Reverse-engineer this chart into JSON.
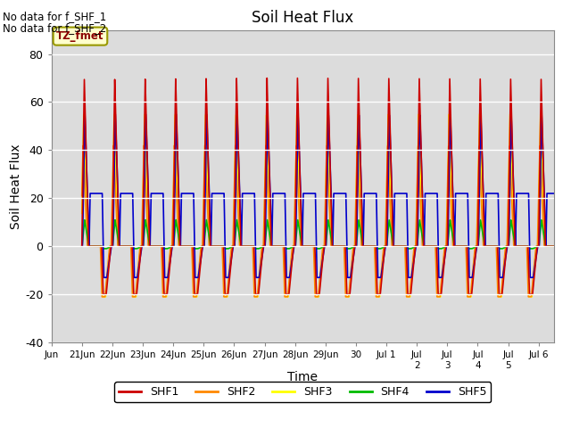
{
  "title": "Soil Heat Flux",
  "xlabel": "Time",
  "ylabel": "Soil Heat Flux",
  "ylim": [
    -40,
    90
  ],
  "yticks": [
    -40,
    -20,
    0,
    20,
    40,
    60,
    80
  ],
  "background_color": "#dcdcdc",
  "no_data_text1": "No data for f_SHF_1",
  "no_data_text2": "No data for f_SHF_2",
  "tz_label": "TZ_fmet",
  "legend_entries": [
    "SHF1",
    "SHF2",
    "SHF3",
    "SHF4",
    "SHF5"
  ],
  "legend_colors": [
    "#cc0000",
    "#ff8800",
    "#ffff00",
    "#00bb00",
    "#0000cc"
  ],
  "line_width": 1.2,
  "colors": {
    "SHF1": "#cc0000",
    "SHF2": "#ff8800",
    "SHF3": "#ffff00",
    "SHF4": "#00bb00",
    "SHF5": "#0000cc"
  },
  "series": {
    "SHF1": {
      "peak": 70,
      "trough": -20,
      "phase": 0.0,
      "flat_level": 0,
      "flat_day": 0
    },
    "SHF2": {
      "peak": 42,
      "trough": -21,
      "phase": 0.04,
      "flat_level": 0,
      "flat_day": 0
    },
    "SHF3": {
      "peak": 55,
      "trough": -21,
      "phase": 0.02,
      "flat_level": 0,
      "flat_day": 0
    },
    "SHF4": {
      "peak": 11,
      "trough": -1,
      "phase": -0.01,
      "flat_level": 0,
      "flat_day": 1
    },
    "SHF5": {
      "peak": 55,
      "trough": -13,
      "phase": -0.02,
      "flat_level": 22,
      "flat_day": 1
    }
  },
  "plot_order": [
    "SHF3",
    "SHF2",
    "SHF4",
    "SHF5",
    "SHF1"
  ],
  "num_days": 16,
  "pts_per_day": 480
}
